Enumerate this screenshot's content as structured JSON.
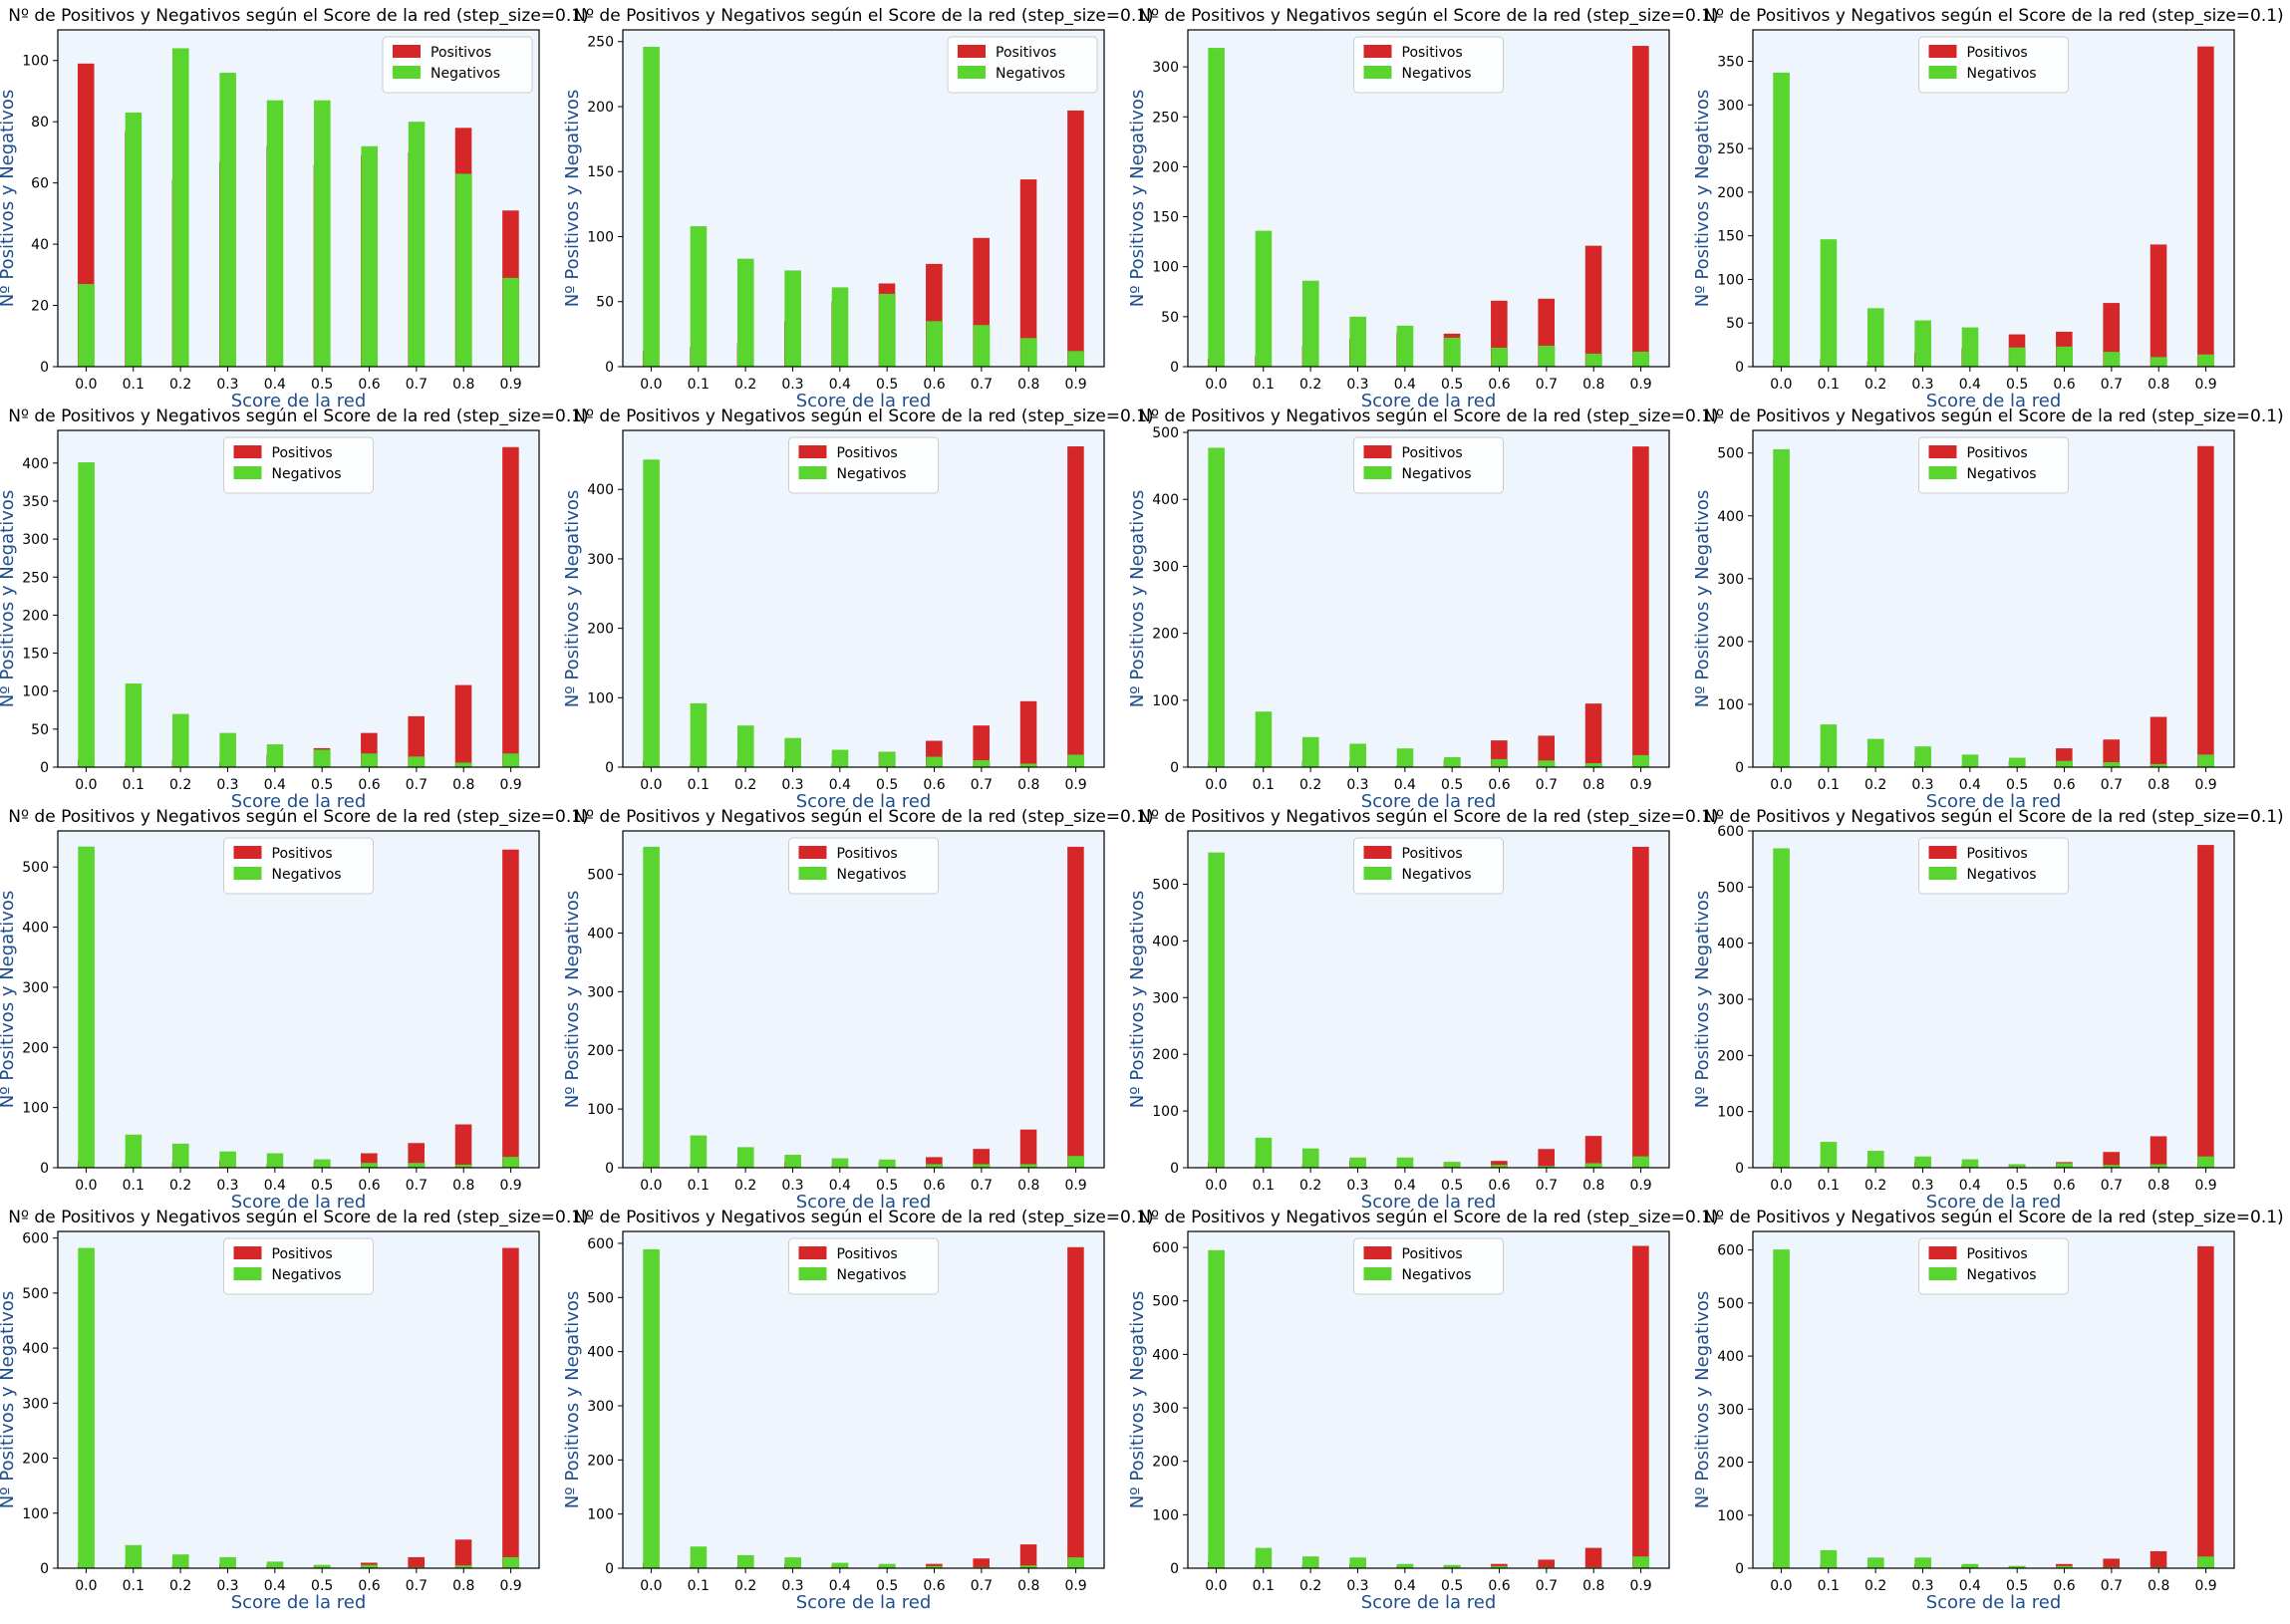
{
  "colors": {
    "positivos": "#d62728",
    "negativos": "#5ad42e",
    "plot_background": "#eef5fd",
    "axis_label": "#1f4e8c",
    "text": "#000000"
  },
  "chart_data": [
    {
      "type": "bar",
      "title": "Nº de Positivos y Negativos según el Score de la red (step_size=0.1)",
      "xlabel": "Score de la red",
      "ylabel": "Nº Positivos y Negativos",
      "categories": [
        "0.0",
        "0.1",
        "0.2",
        "0.3",
        "0.4",
        "0.5",
        "0.6",
        "0.7",
        "0.8",
        "0.9"
      ],
      "ylim": [
        0,
        110
      ],
      "yticks": [
        0,
        20,
        40,
        60,
        80,
        100
      ],
      "legend_position": "upper-right",
      "series": [
        {
          "name": "Positivos",
          "values": [
            99,
            77,
            61,
            67,
            72,
            66,
            69,
            70,
            78,
            51
          ]
        },
        {
          "name": "Negativos",
          "values": [
            27,
            83,
            104,
            96,
            87,
            87,
            72,
            80,
            63,
            29
          ]
        }
      ]
    },
    {
      "type": "bar",
      "title": "Nº de Positivos y Negativos según el Score de la red (step_size=0.1)",
      "xlabel": "Score de la red",
      "ylabel": "Nº Positivos y Negativos",
      "categories": [
        "0.0",
        "0.1",
        "0.2",
        "0.3",
        "0.4",
        "0.5",
        "0.6",
        "0.7",
        "0.8",
        "0.9"
      ],
      "ylim": [
        0,
        259
      ],
      "yticks": [
        0,
        50,
        100,
        150,
        200,
        250
      ],
      "legend_position": "upper-right",
      "series": [
        {
          "name": "Positivos",
          "values": [
            12,
            15,
            18,
            35,
            50,
            64,
            79,
            99,
            144,
            197
          ]
        },
        {
          "name": "Negativos",
          "values": [
            246,
            108,
            83,
            74,
            61,
            56,
            35,
            32,
            22,
            12
          ]
        }
      ]
    },
    {
      "type": "bar",
      "title": "Nº de Positivos y Negativos según el Score de la red (step_size=0.1)",
      "xlabel": "Score de la red",
      "ylabel": "Nº Positivos y Negativos",
      "categories": [
        "0.0",
        "0.1",
        "0.2",
        "0.3",
        "0.4",
        "0.5",
        "0.6",
        "0.7",
        "0.8",
        "0.9"
      ],
      "ylim": [
        0,
        337
      ],
      "yticks": [
        0,
        50,
        100,
        150,
        200,
        250,
        300
      ],
      "legend_position": "upper-center",
      "series": [
        {
          "name": "Positivos",
          "values": [
            8,
            11,
            21,
            28,
            34,
            33,
            66,
            68,
            121,
            321
          ]
        },
        {
          "name": "Negativos",
          "values": [
            319,
            136,
            86,
            50,
            41,
            29,
            19,
            21,
            13,
            15
          ]
        }
      ]
    },
    {
      "type": "bar",
      "title": "Nº de Positivos y Negativos según el Score de la red (step_size=0.1)",
      "xlabel": "Score de la red",
      "ylabel": "Nº Positivos y Negativos",
      "categories": [
        "0.0",
        "0.1",
        "0.2",
        "0.3",
        "0.4",
        "0.5",
        "0.6",
        "0.7",
        "0.8",
        "0.9"
      ],
      "ylim": [
        0,
        386
      ],
      "yticks": [
        0,
        50,
        100,
        150,
        200,
        250,
        300,
        350
      ],
      "legend_position": "upper-center",
      "series": [
        {
          "name": "Positivos",
          "values": [
            8,
            8,
            6,
            16,
            21,
            37,
            40,
            73,
            140,
            367
          ]
        },
        {
          "name": "Negativos",
          "values": [
            337,
            146,
            67,
            53,
            45,
            22,
            23,
            17,
            11,
            14
          ]
        }
      ]
    },
    {
      "type": "bar",
      "title": "Nº de Positivos y Negativos según el Score de la red (step_size=0.1)",
      "xlabel": "Score de la red",
      "ylabel": "Nº Positivos y Negativos",
      "categories": [
        "0.0",
        "0.1",
        "0.2",
        "0.3",
        "0.4",
        "0.5",
        "0.6",
        "0.7",
        "0.8",
        "0.9"
      ],
      "ylim": [
        0,
        443
      ],
      "yticks": [
        0,
        50,
        100,
        150,
        200,
        250,
        300,
        350,
        400
      ],
      "legend_position": "upper-center",
      "series": [
        {
          "name": "Positivos",
          "values": [
            9,
            6,
            10,
            6,
            16,
            25,
            45,
            67,
            108,
            421
          ]
        },
        {
          "name": "Negativos",
          "values": [
            401,
            110,
            70,
            45,
            30,
            23,
            18,
            14,
            6,
            18
          ]
        }
      ]
    },
    {
      "type": "bar",
      "title": "Nº de Positivos y Negativos según el Score de la red (step_size=0.1)",
      "xlabel": "Score de la red",
      "ylabel": "Nº Positivos y Negativos",
      "categories": [
        "0.0",
        "0.1",
        "0.2",
        "0.3",
        "0.4",
        "0.5",
        "0.6",
        "0.7",
        "0.8",
        "0.9"
      ],
      "ylim": [
        0,
        485
      ],
      "yticks": [
        0,
        100,
        200,
        300,
        400
      ],
      "legend_position": "upper-center",
      "series": [
        {
          "name": "Positivos",
          "values": [
            8,
            5,
            10,
            10,
            5,
            22,
            38,
            60,
            95,
            462
          ]
        },
        {
          "name": "Negativos",
          "values": [
            443,
            92,
            60,
            42,
            25,
            22,
            15,
            10,
            5,
            18
          ]
        }
      ]
    },
    {
      "type": "bar",
      "title": "Nº de Positivos y Negativos según el Score de la red (step_size=0.1)",
      "xlabel": "Score de la red",
      "ylabel": "Nº Positivos y Negativos",
      "categories": [
        "0.0",
        "0.1",
        "0.2",
        "0.3",
        "0.4",
        "0.5",
        "0.6",
        "0.7",
        "0.8",
        "0.9"
      ],
      "ylim": [
        0,
        503
      ],
      "yticks": [
        0,
        100,
        200,
        300,
        400,
        500
      ],
      "legend_position": "upper-center",
      "series": [
        {
          "name": "Positivos",
          "values": [
            8,
            7,
            10,
            8,
            3,
            10,
            40,
            47,
            95,
            479
          ]
        },
        {
          "name": "Negativos",
          "values": [
            477,
            83,
            45,
            35,
            28,
            15,
            12,
            10,
            6,
            18
          ]
        }
      ]
    },
    {
      "type": "bar",
      "title": "Nº de Positivos y Negativos según el Score de la red (step_size=0.1)",
      "xlabel": "Score de la red",
      "ylabel": "Nº Positivos y Negativos",
      "categories": [
        "0.0",
        "0.1",
        "0.2",
        "0.3",
        "0.4",
        "0.5",
        "0.6",
        "0.7",
        "0.8",
        "0.9"
      ],
      "ylim": [
        0,
        536
      ],
      "yticks": [
        0,
        100,
        200,
        300,
        400,
        500
      ],
      "legend_position": "upper-center",
      "series": [
        {
          "name": "Positivos",
          "values": [
            8,
            6,
            8,
            10,
            2,
            10,
            30,
            44,
            80,
            511
          ]
        },
        {
          "name": "Negativos",
          "values": [
            506,
            68,
            45,
            33,
            20,
            15,
            10,
            8,
            5,
            20
          ]
        }
      ]
    },
    {
      "type": "bar",
      "title": "Nº de Positivos y Negativos según el Score de la red (step_size=0.1)",
      "xlabel": "Score de la red",
      "ylabel": "Nº Positivos y Negativos",
      "categories": [
        "0.0",
        "0.1",
        "0.2",
        "0.3",
        "0.4",
        "0.5",
        "0.6",
        "0.7",
        "0.8",
        "0.9"
      ],
      "ylim": [
        0,
        560
      ],
      "yticks": [
        0,
        100,
        200,
        300,
        400,
        500
      ],
      "legend_position": "upper-center",
      "series": [
        {
          "name": "Positivos",
          "values": [
            10,
            7,
            9,
            12,
            6,
            10,
            24,
            41,
            72,
            529
          ]
        },
        {
          "name": "Negativos",
          "values": [
            534,
            55,
            40,
            27,
            24,
            14,
            8,
            8,
            5,
            18
          ]
        }
      ]
    },
    {
      "type": "bar",
      "title": "Nº de Positivos y Negativos según el Score de la red (step_size=0.1)",
      "xlabel": "Score de la red",
      "ylabel": "Nº Positivos y Negativos",
      "categories": [
        "0.0",
        "0.1",
        "0.2",
        "0.3",
        "0.4",
        "0.5",
        "0.6",
        "0.7",
        "0.8",
        "0.9"
      ],
      "ylim": [
        0,
        574
      ],
      "yticks": [
        0,
        100,
        200,
        300,
        400,
        500
      ],
      "legend_position": "upper-center",
      "series": [
        {
          "name": "Positivos",
          "values": [
            10,
            6,
            7,
            10,
            4,
            10,
            18,
            32,
            65,
            547
          ]
        },
        {
          "name": "Negativos",
          "values": [
            547,
            55,
            35,
            22,
            16,
            14,
            6,
            6,
            6,
            20
          ]
        }
      ]
    },
    {
      "type": "bar",
      "title": "Nº de Positivos y Negativos según el Score de la red (step_size=0.1)",
      "xlabel": "Score de la red",
      "ylabel": "Nº Positivos y Negativos",
      "categories": [
        "0.0",
        "0.1",
        "0.2",
        "0.3",
        "0.4",
        "0.5",
        "0.6",
        "0.7",
        "0.8",
        "0.9"
      ],
      "ylim": [
        0,
        594
      ],
      "yticks": [
        0,
        100,
        200,
        300,
        400,
        500
      ],
      "legend_position": "upper-center",
      "series": [
        {
          "name": "Positivos",
          "values": [
            10,
            6,
            6,
            12,
            3,
            10,
            12,
            33,
            56,
            566
          ]
        },
        {
          "name": "Negativos",
          "values": [
            556,
            53,
            34,
            18,
            18,
            10,
            5,
            3,
            8,
            20
          ]
        }
      ]
    },
    {
      "type": "bar",
      "title": "Nº de Positivos y Negativos según el Score de la red (step_size=0.1)",
      "xlabel": "Score de la red",
      "ylabel": "Nº Positivos y Negativos",
      "categories": [
        "0.0",
        "0.1",
        "0.2",
        "0.3",
        "0.4",
        "0.5",
        "0.6",
        "0.7",
        "0.8",
        "0.9"
      ],
      "ylim": [
        0,
        600
      ],
      "yticks": [
        0,
        100,
        200,
        300,
        400,
        500,
        600
      ],
      "legend_position": "upper-center",
      "series": [
        {
          "name": "Positivos",
          "values": [
            10,
            6,
            6,
            10,
            6,
            6,
            10,
            28,
            56,
            575
          ]
        },
        {
          "name": "Negativos",
          "values": [
            569,
            46,
            30,
            20,
            15,
            6,
            8,
            5,
            6,
            20
          ]
        }
      ]
    },
    {
      "type": "bar",
      "title": "Nº de Positivos y Negativos según el Score de la red (step_size=0.1)",
      "xlabel": "Score de la red",
      "ylabel": "Nº Positivos y Negativos",
      "categories": [
        "0.0",
        "0.1",
        "0.2",
        "0.3",
        "0.4",
        "0.5",
        "0.6",
        "0.7",
        "0.8",
        "0.9"
      ],
      "ylim": [
        0,
        612
      ],
      "yticks": [
        0,
        100,
        200,
        300,
        400,
        500,
        600
      ],
      "legend_position": "upper-center",
      "series": [
        {
          "name": "Positivos",
          "values": [
            10,
            6,
            6,
            8,
            5,
            5,
            10,
            20,
            52,
            582
          ]
        },
        {
          "name": "Negativos",
          "values": [
            582,
            42,
            25,
            20,
            12,
            6,
            6,
            2,
            5,
            20
          ]
        }
      ]
    },
    {
      "type": "bar",
      "title": "Nº de Positivos y Negativos según el Score de la red (step_size=0.1)",
      "xlabel": "Score de la red",
      "ylabel": "Nº Positivos y Negativos",
      "categories": [
        "0.0",
        "0.1",
        "0.2",
        "0.3",
        "0.4",
        "0.5",
        "0.6",
        "0.7",
        "0.8",
        "0.9"
      ],
      "ylim": [
        0,
        622
      ],
      "yticks": [
        0,
        100,
        200,
        300,
        400,
        500,
        600
      ],
      "legend_position": "upper-center",
      "series": [
        {
          "name": "Positivos",
          "values": [
            10,
            5,
            4,
            8,
            5,
            5,
            8,
            18,
            44,
            593
          ]
        },
        {
          "name": "Negativos",
          "values": [
            589,
            40,
            24,
            20,
            10,
            8,
            4,
            2,
            5,
            20
          ]
        }
      ]
    },
    {
      "type": "bar",
      "title": "Nº de Positivos y Negativos según el Score de la red (step_size=0.1)",
      "xlabel": "Score de la red",
      "ylabel": "Nº Positivos y Negativos",
      "categories": [
        "0.0",
        "0.1",
        "0.2",
        "0.3",
        "0.4",
        "0.5",
        "0.6",
        "0.7",
        "0.8",
        "0.9"
      ],
      "ylim": [
        0,
        630
      ],
      "yticks": [
        0,
        100,
        200,
        300,
        400,
        500,
        600
      ],
      "legend_position": "upper-center",
      "series": [
        {
          "name": "Positivos",
          "values": [
            12,
            5,
            6,
            8,
            4,
            5,
            8,
            16,
            38,
            603
          ]
        },
        {
          "name": "Negativos",
          "values": [
            595,
            38,
            22,
            20,
            8,
            6,
            4,
            2,
            2,
            22
          ]
        }
      ]
    },
    {
      "type": "bar",
      "title": "Nº de Positivos y Negativos según el Score de la red (step_size=0.1)",
      "xlabel": "Score de la red",
      "ylabel": "Nº Positivos y Negativos",
      "categories": [
        "0.0",
        "0.1",
        "0.2",
        "0.3",
        "0.4",
        "0.5",
        "0.6",
        "0.7",
        "0.8",
        "0.9"
      ],
      "ylim": [
        0,
        635
      ],
      "yticks": [
        0,
        100,
        200,
        300,
        400,
        500,
        600
      ],
      "legend_position": "upper-center",
      "series": [
        {
          "name": "Positivos",
          "values": [
            12,
            6,
            4,
            8,
            6,
            4,
            8,
            18,
            32,
            607
          ]
        },
        {
          "name": "Negativos",
          "values": [
            601,
            34,
            20,
            20,
            8,
            4,
            4,
            2,
            2,
            22
          ]
        }
      ]
    }
  ]
}
